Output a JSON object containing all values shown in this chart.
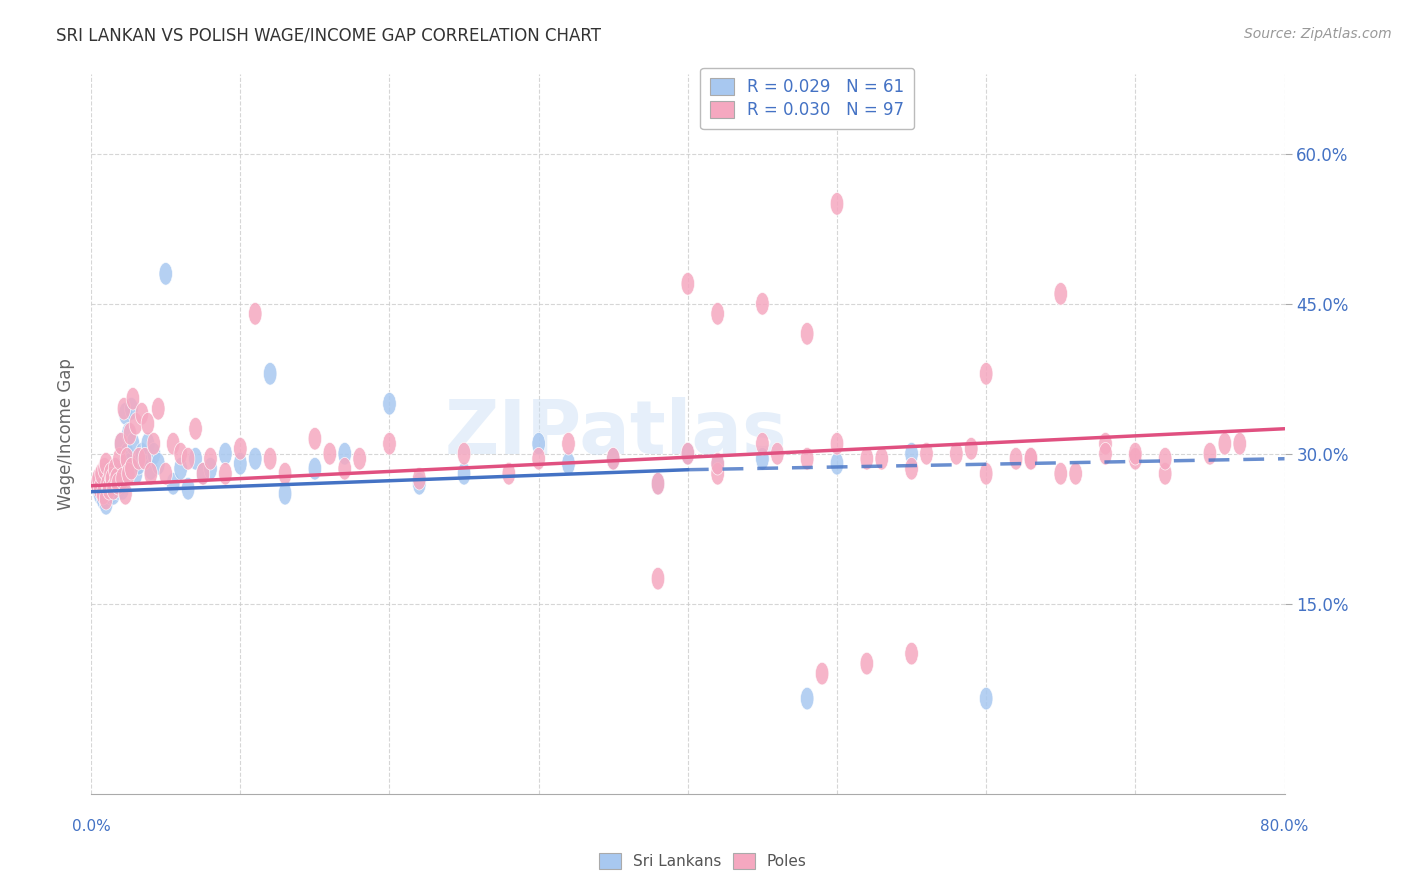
{
  "title": "SRI LANKAN VS POLISH WAGE/INCOME GAP CORRELATION CHART",
  "source": "Source: ZipAtlas.com",
  "ylabel": "Wage/Income Gap",
  "right_yticklabels": [
    "15.0%",
    "30.0%",
    "45.0%",
    "60.0%"
  ],
  "right_ytick_vals": [
    0.15,
    0.3,
    0.45,
    0.6
  ],
  "legend_sri": "R = 0.029   N = 61",
  "legend_poles": "R = 0.030   N = 97",
  "color_sri": "#a8c8f0",
  "color_poles": "#f5a8c0",
  "color_sri_line": "#4472c4",
  "color_poles_line": "#e05080",
  "color_blue_text": "#4472c4",
  "watermark": "ZIPatlas",
  "sri_x": [
    0.005,
    0.006,
    0.007,
    0.008,
    0.009,
    0.01,
    0.01,
    0.011,
    0.012,
    0.013,
    0.014,
    0.015,
    0.016,
    0.017,
    0.018,
    0.019,
    0.02,
    0.021,
    0.022,
    0.023,
    0.024,
    0.025,
    0.026,
    0.027,
    0.028,
    0.03,
    0.032,
    0.034,
    0.036,
    0.038,
    0.04,
    0.042,
    0.045,
    0.05,
    0.055,
    0.06,
    0.065,
    0.07,
    0.075,
    0.08,
    0.09,
    0.1,
    0.11,
    0.12,
    0.13,
    0.15,
    0.17,
    0.2,
    0.22,
    0.25,
    0.3,
    0.32,
    0.35,
    0.38,
    0.4,
    0.42,
    0.45,
    0.48,
    0.5,
    0.55,
    0.6
  ],
  "sri_y": [
    0.265,
    0.26,
    0.27,
    0.255,
    0.275,
    0.25,
    0.28,
    0.265,
    0.27,
    0.26,
    0.275,
    0.26,
    0.275,
    0.285,
    0.265,
    0.28,
    0.31,
    0.265,
    0.275,
    0.34,
    0.3,
    0.32,
    0.29,
    0.345,
    0.31,
    0.28,
    0.29,
    0.3,
    0.295,
    0.31,
    0.285,
    0.3,
    0.29,
    0.48,
    0.27,
    0.285,
    0.265,
    0.295,
    0.28,
    0.285,
    0.3,
    0.29,
    0.295,
    0.38,
    0.26,
    0.285,
    0.3,
    0.35,
    0.27,
    0.28,
    0.31,
    0.29,
    0.295,
    0.27,
    0.3,
    0.29,
    0.295,
    0.055,
    0.29,
    0.3,
    0.055
  ],
  "poles_x": [
    0.004,
    0.005,
    0.006,
    0.007,
    0.008,
    0.009,
    0.01,
    0.01,
    0.011,
    0.012,
    0.013,
    0.014,
    0.015,
    0.016,
    0.017,
    0.018,
    0.019,
    0.02,
    0.021,
    0.022,
    0.023,
    0.024,
    0.025,
    0.026,
    0.027,
    0.028,
    0.03,
    0.032,
    0.034,
    0.036,
    0.038,
    0.04,
    0.042,
    0.045,
    0.05,
    0.055,
    0.06,
    0.065,
    0.07,
    0.075,
    0.08,
    0.09,
    0.1,
    0.11,
    0.12,
    0.13,
    0.15,
    0.16,
    0.17,
    0.18,
    0.2,
    0.22,
    0.25,
    0.28,
    0.3,
    0.32,
    0.35,
    0.38,
    0.4,
    0.42,
    0.45,
    0.48,
    0.5,
    0.52,
    0.55,
    0.58,
    0.6,
    0.63,
    0.65,
    0.68,
    0.7,
    0.72,
    0.75,
    0.77,
    0.4,
    0.42,
    0.45,
    0.48,
    0.5,
    0.53,
    0.56,
    0.6,
    0.63,
    0.66,
    0.7,
    0.38,
    0.42,
    0.46,
    0.49,
    0.52,
    0.55,
    0.59,
    0.62,
    0.65,
    0.68,
    0.72,
    0.76
  ],
  "poles_y": [
    0.27,
    0.275,
    0.265,
    0.28,
    0.26,
    0.285,
    0.255,
    0.29,
    0.27,
    0.265,
    0.28,
    0.275,
    0.265,
    0.285,
    0.275,
    0.27,
    0.295,
    0.31,
    0.275,
    0.345,
    0.26,
    0.295,
    0.28,
    0.32,
    0.285,
    0.355,
    0.33,
    0.295,
    0.34,
    0.295,
    0.33,
    0.28,
    0.31,
    0.345,
    0.28,
    0.31,
    0.3,
    0.295,
    0.325,
    0.28,
    0.295,
    0.28,
    0.305,
    0.44,
    0.295,
    0.28,
    0.315,
    0.3,
    0.285,
    0.295,
    0.31,
    0.275,
    0.3,
    0.28,
    0.295,
    0.31,
    0.295,
    0.27,
    0.3,
    0.28,
    0.31,
    0.295,
    0.55,
    0.295,
    0.285,
    0.3,
    0.28,
    0.295,
    0.46,
    0.31,
    0.295,
    0.28,
    0.3,
    0.31,
    0.47,
    0.44,
    0.45,
    0.42,
    0.31,
    0.295,
    0.3,
    0.38,
    0.295,
    0.28,
    0.3,
    0.175,
    0.29,
    0.3,
    0.08,
    0.09,
    0.1,
    0.305,
    0.295,
    0.28,
    0.3,
    0.295,
    0.31
  ],
  "xlim": [
    0.0,
    0.8
  ],
  "ylim": [
    -0.04,
    0.68
  ],
  "grid_color": "#cccccc",
  "background_color": "#ffffff",
  "sri_trend_x0": 0.0,
  "sri_trend_x_solid_end": 0.4,
  "sri_trend_x1": 0.8,
  "sri_trend_y0": 0.262,
  "sri_trend_y_solid_end": 0.284,
  "sri_trend_y1": 0.295,
  "poles_trend_y0": 0.268,
  "poles_trend_y1": 0.325
}
